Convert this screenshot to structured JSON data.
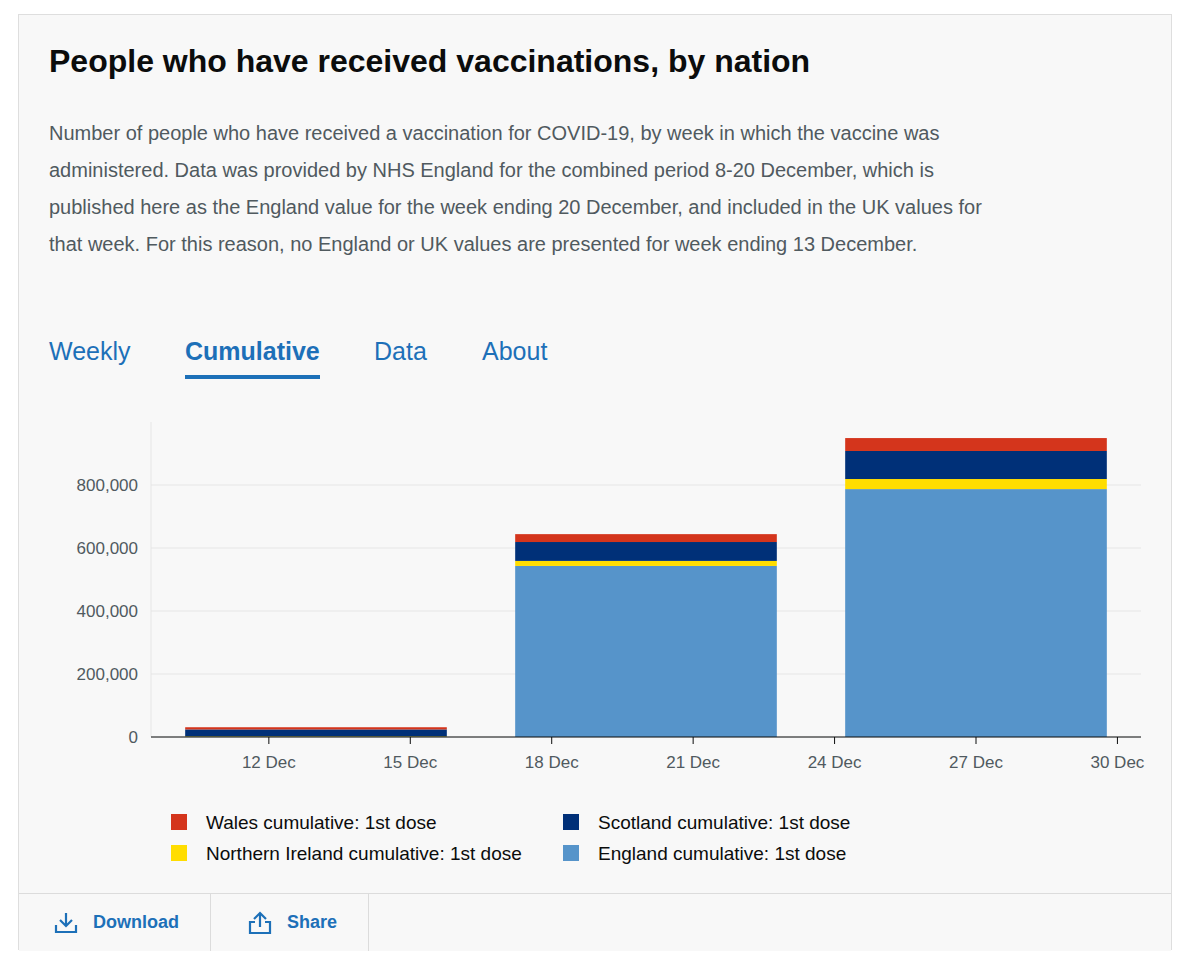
{
  "page": {
    "title": "People who have received vaccinations, by nation",
    "description": "Number of people who have received a vaccination for COVID-19, by week in which the vaccine was administered. Data was provided by NHS England for the combined period 8-20 December, which is published here as the England value for the week ending 20 December, and included in the UK values for that week. For this reason, no England or UK values are presented for week ending 13 December.",
    "tabs": [
      "Weekly",
      "Cumulative",
      "Data",
      "About"
    ],
    "active_tab": "Cumulative",
    "actions": [
      "Download",
      "Share"
    ]
  },
  "chart_data": {
    "type": "bar",
    "stacked": true,
    "grid": true,
    "legend": "bottom",
    "x": [
      13,
      20,
      27
    ],
    "xlim": [
      9.5,
      30.5
    ],
    "xticks": [
      {
        "value": 12,
        "label": "12 Dec"
      },
      {
        "value": 15,
        "label": "15 Dec"
      },
      {
        "value": 18,
        "label": "18 Dec"
      },
      {
        "value": 21,
        "label": "21 Dec"
      },
      {
        "value": 24,
        "label": "24 Dec"
      },
      {
        "value": 27,
        "label": "27 Dec"
      },
      {
        "value": 30,
        "label": "30 Dec"
      }
    ],
    "ylim": [
      0,
      1000000
    ],
    "yticks": [
      0,
      {
        "value": 200000,
        "label": "200,000"
      },
      {
        "value": 400000,
        "label": "400,000"
      },
      {
        "value": 600000,
        "label": "600,000"
      },
      {
        "value": 800000,
        "label": "800,000"
      }
    ],
    "series": [
      {
        "name": "England cumulative: 1st dose",
        "color": "#5694ca",
        "values": [
          null,
          543000,
          787000
        ]
      },
      {
        "name": "Northern Ireland cumulative: 1st dose",
        "color": "#ffdd00",
        "values": [
          2000,
          16000,
          32000
        ]
      },
      {
        "name": "Scotland cumulative: 1st dose",
        "color": "#003078",
        "values": [
          22000,
          60000,
          89000
        ]
      },
      {
        "name": "Wales cumulative: 1st dose",
        "color": "#d4351c",
        "values": [
          7000,
          25000,
          41000
        ]
      }
    ]
  }
}
